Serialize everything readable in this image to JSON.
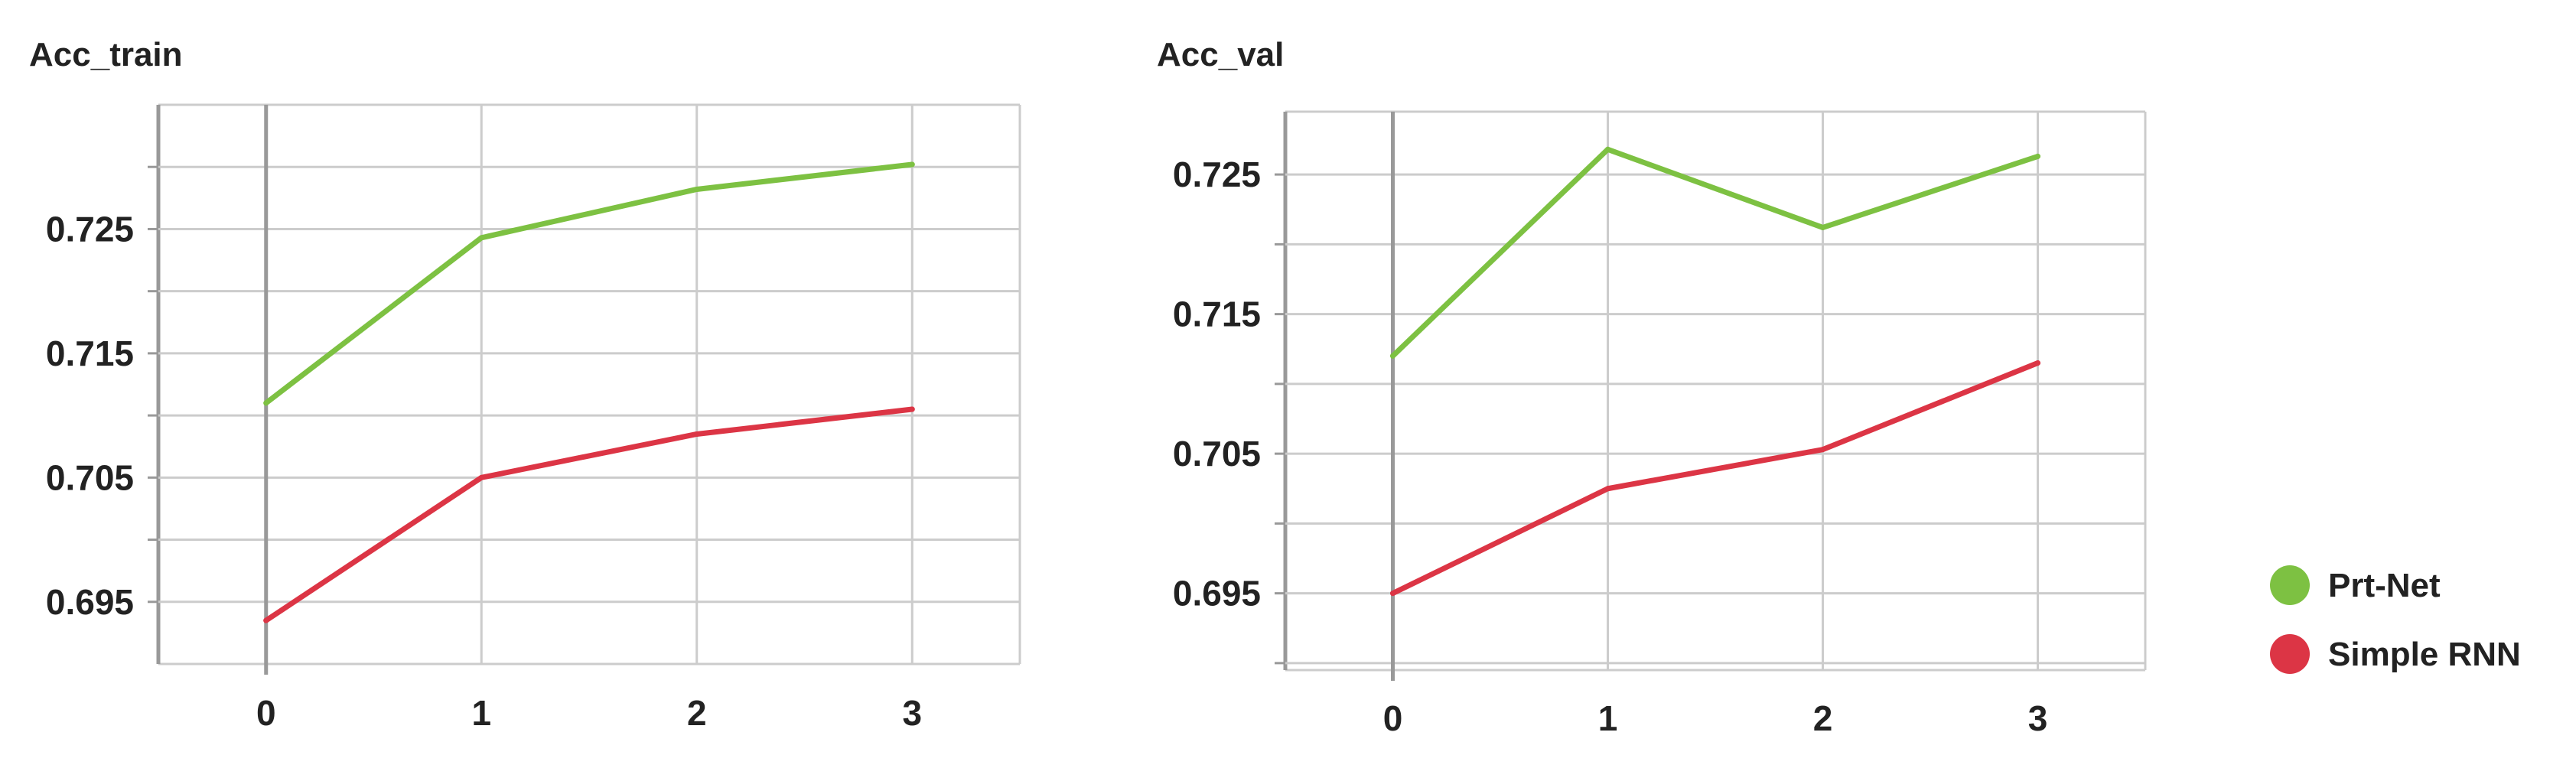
{
  "chart_data": [
    {
      "type": "line",
      "title": "Acc_train",
      "xlabel": "",
      "ylabel": "",
      "x": [
        0,
        1,
        2,
        3
      ],
      "xticks": [
        "0",
        "1",
        "2",
        "3"
      ],
      "yticks": [
        "0.695",
        "0.705",
        "0.715",
        "0.725"
      ],
      "xlim": [
        -0.5,
        3.5
      ],
      "ylim": [
        0.69,
        0.735
      ],
      "grid": true,
      "series": [
        {
          "name": "Prt-Net",
          "color": "#7dc142",
          "values": [
            0.711,
            0.7243,
            0.7282,
            0.7302
          ]
        },
        {
          "name": "Simple RNN",
          "color": "#dc3545",
          "values": [
            0.6935,
            0.705,
            0.7085,
            0.7105
          ]
        }
      ]
    },
    {
      "type": "line",
      "title": "Acc_val",
      "xlabel": "",
      "ylabel": "",
      "x": [
        0,
        1,
        2,
        3
      ],
      "xticks": [
        "0",
        "1",
        "2",
        "3"
      ],
      "yticks": [
        "0.695",
        "0.705",
        "0.715",
        "0.725"
      ],
      "xlim": [
        -0.5,
        3.5
      ],
      "ylim": [
        0.6895,
        0.7295
      ],
      "grid": true,
      "series": [
        {
          "name": "Prt-Net",
          "color": "#7dc142",
          "values": [
            0.712,
            0.7268,
            0.7212,
            0.7263
          ]
        },
        {
          "name": "Simple RNN",
          "color": "#dc3545",
          "values": [
            0.695,
            0.7025,
            0.7053,
            0.7115
          ]
        }
      ]
    }
  ],
  "legend": {
    "placement": "right",
    "items": [
      {
        "name": "Prt-Net",
        "color": "#7dc142"
      },
      {
        "name": "Simple RNN",
        "color": "#dc3545"
      }
    ]
  }
}
